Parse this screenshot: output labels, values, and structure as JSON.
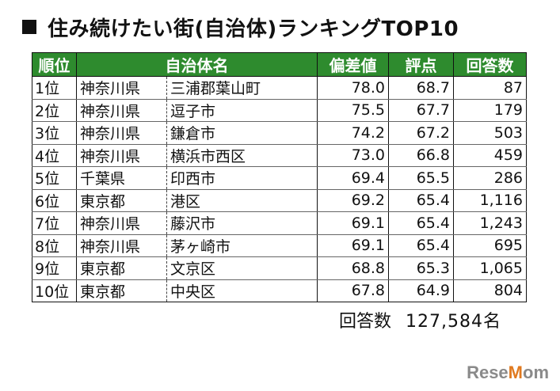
{
  "title": "住み続けたい街(自治体)ランキングTOP10",
  "headers": {
    "rank": "順位",
    "municipality": "自治体名",
    "deviation": "偏差値",
    "score": "評点",
    "responses": "回答数"
  },
  "rows": [
    {
      "rank": "1位",
      "prefecture": "神奈川県",
      "city": "三浦郡葉山町",
      "deviation": "78.0",
      "score": "68.7",
      "responses": "87"
    },
    {
      "rank": "2位",
      "prefecture": "神奈川県",
      "city": "逗子市",
      "deviation": "75.5",
      "score": "67.7",
      "responses": "179"
    },
    {
      "rank": "3位",
      "prefecture": "神奈川県",
      "city": "鎌倉市",
      "deviation": "74.2",
      "score": "67.2",
      "responses": "503"
    },
    {
      "rank": "4位",
      "prefecture": "神奈川県",
      "city": "横浜市西区",
      "deviation": "73.0",
      "score": "66.8",
      "responses": "459"
    },
    {
      "rank": "5位",
      "prefecture": "千葉県",
      "city": "印西市",
      "deviation": "69.4",
      "score": "65.5",
      "responses": "286"
    },
    {
      "rank": "6位",
      "prefecture": "東京都",
      "city": "港区",
      "deviation": "69.2",
      "score": "65.4",
      "responses": "1,116"
    },
    {
      "rank": "7位",
      "prefecture": "神奈川県",
      "city": "藤沢市",
      "deviation": "69.1",
      "score": "65.4",
      "responses": "1,243"
    },
    {
      "rank": "8位",
      "prefecture": "神奈川県",
      "city": "茅ヶ崎市",
      "deviation": "69.1",
      "score": "65.4",
      "responses": "695"
    },
    {
      "rank": "9位",
      "prefecture": "東京都",
      "city": "文京区",
      "deviation": "68.8",
      "score": "65.3",
      "responses": "1,065"
    },
    {
      "rank": "10位",
      "prefecture": "東京都",
      "city": "中央区",
      "deviation": "67.8",
      "score": "64.9",
      "responses": "804"
    }
  ],
  "total": {
    "label": "回答数",
    "value": "127,584名"
  },
  "brand": {
    "prefix": "Rese",
    "accent": "M",
    "suffix": "om"
  },
  "colors": {
    "header_bg": "#2e8b2e",
    "header_text": "#ffffff"
  }
}
